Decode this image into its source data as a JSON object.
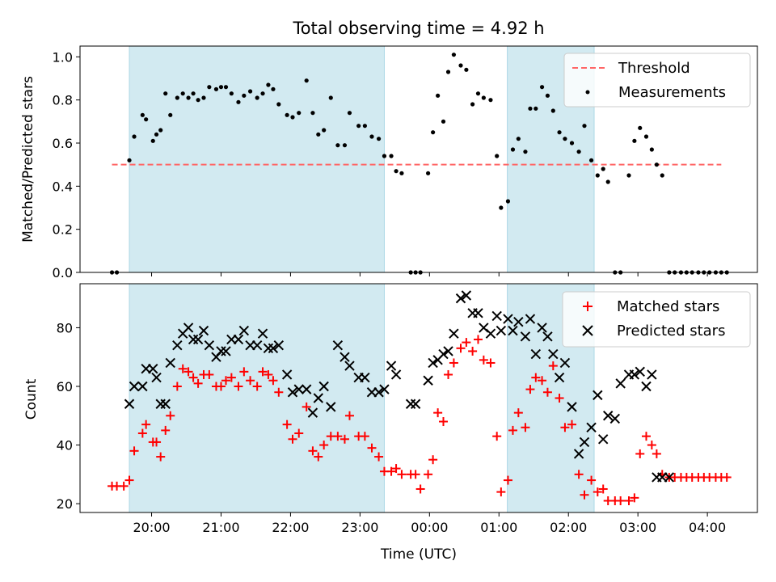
{
  "title": "Total observing time = 4.92 h",
  "colors": {
    "shade": "#ADD8E6",
    "threshold": "#FF6666",
    "measurement": "#000000",
    "matched": "#FF0000",
    "predicted": "#000000"
  },
  "chart_data": [
    {
      "type": "scatter",
      "ylabel": "Matched/Predicted stars",
      "xlabel": "",
      "x_unit": "hours after 00:00 UTC (values after 24 = next day)",
      "xlim": [
        18.97,
        28.72
      ],
      "ylim": [
        0.0,
        1.05
      ],
      "yticks": [
        0.0,
        0.2,
        0.4,
        0.6,
        0.8,
        1.0
      ],
      "yticklabels": [
        "0.0",
        "0.2",
        "0.4",
        "0.6",
        "0.8",
        "1.0"
      ],
      "xticks": [
        20,
        21,
        22,
        23,
        24,
        25,
        26,
        27,
        28
      ],
      "show_xticklabels": false,
      "shaded_intervals": [
        [
          19.68,
          23.35
        ],
        [
          25.12,
          26.37
        ]
      ],
      "legend": {
        "position": "upper right",
        "entries": [
          "Threshold",
          "Measurements"
        ]
      },
      "series": [
        {
          "name": "Threshold",
          "kind": "dashed-line",
          "x": [
            19.43,
            28.2
          ],
          "y": [
            0.5,
            0.5
          ]
        },
        {
          "name": "Measurements",
          "kind": "dot",
          "x": [
            19.43,
            19.5,
            19.68,
            19.75,
            19.87,
            19.92,
            20.02,
            20.07,
            20.13,
            20.2,
            20.27,
            20.37,
            20.45,
            20.53,
            20.6,
            20.67,
            20.75,
            20.83,
            20.93,
            21.0,
            21.07,
            21.15,
            21.25,
            21.33,
            21.42,
            21.52,
            21.6,
            21.68,
            21.75,
            21.83,
            21.95,
            22.03,
            22.12,
            22.23,
            22.32,
            22.4,
            22.48,
            22.58,
            22.68,
            22.78,
            22.85,
            22.98,
            23.07,
            23.17,
            23.27,
            23.35,
            23.45,
            23.52,
            23.6,
            23.73,
            23.8,
            23.87,
            23.98,
            24.05,
            24.12,
            24.2,
            24.27,
            24.35,
            24.45,
            24.53,
            24.62,
            24.7,
            24.78,
            24.88,
            24.97,
            25.03,
            25.13,
            25.2,
            25.28,
            25.38,
            25.45,
            25.53,
            25.62,
            25.7,
            25.78,
            25.87,
            25.95,
            26.05,
            26.15,
            26.23,
            26.33,
            26.42,
            26.5,
            26.57,
            26.67,
            26.75,
            26.87,
            26.95,
            27.03,
            27.12,
            27.2,
            27.27,
            27.35,
            27.45,
            27.53,
            27.62,
            27.7,
            27.78,
            27.87,
            27.95,
            28.03,
            28.12,
            28.2,
            28.28
          ],
          "y": [
            0.0,
            0.0,
            0.52,
            0.63,
            0.73,
            0.71,
            0.61,
            0.64,
            0.66,
            0.83,
            0.73,
            0.81,
            0.83,
            0.81,
            0.83,
            0.8,
            0.81,
            0.86,
            0.85,
            0.86,
            0.86,
            0.83,
            0.79,
            0.82,
            0.84,
            0.81,
            0.83,
            0.87,
            0.85,
            0.78,
            0.73,
            0.72,
            0.74,
            0.89,
            0.74,
            0.64,
            0.66,
            0.81,
            0.59,
            0.59,
            0.74,
            0.68,
            0.68,
            0.63,
            0.62,
            0.54,
            0.54,
            0.47,
            0.46,
            0.0,
            0.0,
            0.0,
            0.46,
            0.65,
            0.82,
            0.7,
            0.93,
            1.01,
            0.96,
            0.94,
            0.78,
            0.83,
            0.81,
            0.8,
            0.54,
            0.3,
            0.33,
            0.57,
            0.62,
            0.56,
            0.76,
            0.76,
            0.86,
            0.82,
            0.75,
            0.65,
            0.62,
            0.6,
            0.56,
            0.68,
            0.52,
            0.45,
            0.48,
            0.42,
            0.0,
            0.0,
            0.45,
            0.61,
            0.67,
            0.63,
            0.57,
            0.5,
            0.45,
            0.0,
            0.0,
            0.0,
            0.0,
            0.0,
            0.0,
            0.0,
            0.0,
            0.0,
            0.0,
            0.0
          ]
        }
      ]
    },
    {
      "type": "scatter",
      "ylabel": "Count",
      "xlabel": "Time (UTC)",
      "x_unit": "hours after 00:00 UTC (values after 24 = next day)",
      "xlim": [
        18.97,
        28.72
      ],
      "ylim": [
        17,
        95
      ],
      "yticks": [
        20,
        40,
        60,
        80
      ],
      "yticklabels": [
        "20",
        "40",
        "60",
        "80"
      ],
      "xticks": [
        20,
        21,
        22,
        23,
        24,
        25,
        26,
        27,
        28
      ],
      "xticklabels": [
        "20:00",
        "21:00",
        "22:00",
        "23:00",
        "00:00",
        "01:00",
        "02:00",
        "03:00",
        "04:00"
      ],
      "show_xticklabels": true,
      "shaded_intervals": [
        [
          19.68,
          23.35
        ],
        [
          25.12,
          26.37
        ]
      ],
      "legend": {
        "position": "upper right",
        "entries": [
          "Matched stars",
          "Predicted stars"
        ]
      },
      "series": [
        {
          "name": "Matched stars",
          "kind": "plus",
          "x": [
            19.43,
            19.5,
            19.6,
            19.68,
            19.75,
            19.87,
            19.92,
            20.02,
            20.07,
            20.13,
            20.2,
            20.27,
            20.37,
            20.45,
            20.53,
            20.6,
            20.67,
            20.75,
            20.83,
            20.93,
            21.0,
            21.07,
            21.15,
            21.25,
            21.33,
            21.42,
            21.52,
            21.6,
            21.68,
            21.75,
            21.83,
            21.95,
            22.03,
            22.12,
            22.23,
            22.32,
            22.4,
            22.48,
            22.58,
            22.68,
            22.78,
            22.85,
            22.98,
            23.07,
            23.17,
            23.27,
            23.35,
            23.45,
            23.52,
            23.6,
            23.73,
            23.8,
            23.87,
            23.98,
            24.05,
            24.12,
            24.2,
            24.27,
            24.35,
            24.45,
            24.53,
            24.62,
            24.7,
            24.78,
            24.88,
            24.97,
            25.03,
            25.13,
            25.2,
            25.28,
            25.38,
            25.45,
            25.53,
            25.62,
            25.7,
            25.78,
            25.87,
            25.95,
            26.05,
            26.15,
            26.23,
            26.33,
            26.42,
            26.5,
            26.57,
            26.67,
            26.75,
            26.87,
            26.95,
            27.03,
            27.12,
            27.2,
            27.27,
            27.35,
            27.45,
            27.53,
            27.62,
            27.7,
            27.78,
            27.87,
            27.95,
            28.03,
            28.12,
            28.2,
            28.28
          ],
          "y": [
            26,
            26,
            26,
            28,
            38,
            44,
            47,
            41,
            41,
            36,
            45,
            50,
            60,
            66,
            65,
            63,
            61,
            64,
            64,
            60,
            60,
            62,
            63,
            60,
            65,
            62,
            60,
            65,
            64,
            62,
            58,
            47,
            42,
            44,
            53,
            38,
            36,
            40,
            43,
            43,
            42,
            50,
            43,
            43,
            39,
            36,
            31,
            31,
            32,
            30,
            30,
            30,
            25,
            30,
            35,
            51,
            48,
            64,
            68,
            73,
            75,
            72,
            76,
            69,
            68,
            43,
            24,
            28,
            45,
            51,
            46,
            59,
            63,
            62,
            58,
            67,
            56,
            46,
            47,
            30,
            23,
            28,
            24,
            25,
            21,
            21,
            21,
            21,
            22,
            37,
            43,
            40,
            37,
            30,
            29,
            29,
            29,
            29,
            29,
            29,
            29,
            29,
            29,
            29,
            29
          ]
        },
        {
          "name": "Predicted stars",
          "kind": "x",
          "x": [
            19.68,
            19.75,
            19.87,
            19.92,
            20.02,
            20.07,
            20.13,
            20.2,
            20.27,
            20.37,
            20.45,
            20.53,
            20.6,
            20.67,
            20.75,
            20.83,
            20.93,
            21.0,
            21.07,
            21.15,
            21.25,
            21.33,
            21.42,
            21.52,
            21.6,
            21.68,
            21.75,
            21.83,
            21.95,
            22.03,
            22.12,
            22.23,
            22.32,
            22.4,
            22.48,
            22.58,
            22.68,
            22.78,
            22.85,
            22.98,
            23.07,
            23.17,
            23.27,
            23.35,
            23.45,
            23.52,
            23.73,
            23.8,
            23.98,
            24.05,
            24.12,
            24.2,
            24.27,
            24.35,
            24.45,
            24.53,
            24.62,
            24.7,
            24.78,
            24.88,
            24.97,
            25.03,
            25.13,
            25.2,
            25.28,
            25.38,
            25.45,
            25.53,
            25.62,
            25.7,
            25.78,
            25.87,
            25.95,
            26.05,
            26.15,
            26.23,
            26.33,
            26.42,
            26.5,
            26.57,
            26.67,
            26.75,
            26.87,
            26.95,
            27.03,
            27.12,
            27.2,
            27.27,
            27.35,
            27.45
          ],
          "y": [
            54,
            60,
            60,
            66,
            66,
            63,
            54,
            54,
            68,
            74,
            78,
            80,
            76,
            76,
            79,
            74,
            70,
            72,
            72,
            76,
            76,
            79,
            74,
            74,
            78,
            73,
            73,
            74,
            64,
            58,
            59,
            59,
            51,
            56,
            60,
            53,
            74,
            70,
            67,
            63,
            63,
            58,
            58,
            59,
            67,
            64,
            54,
            54,
            62,
            68,
            69,
            71,
            72,
            78,
            90,
            91,
            85,
            85,
            80,
            78,
            84,
            79,
            83,
            79,
            82,
            77,
            83,
            71,
            80,
            77,
            71,
            63,
            68,
            53,
            37,
            41,
            46,
            57,
            42,
            50,
            49,
            61,
            64,
            64,
            65,
            60,
            64,
            29,
            29,
            29
          ]
        }
      ]
    }
  ]
}
